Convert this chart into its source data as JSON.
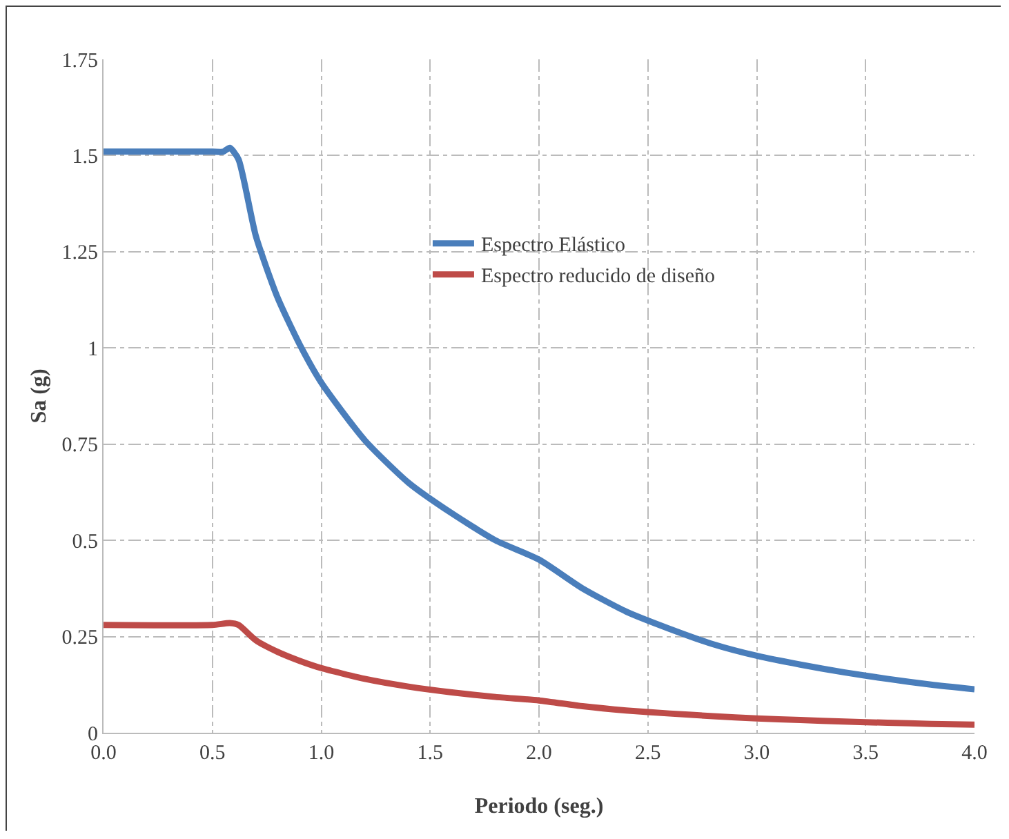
{
  "chart_data": {
    "type": "line",
    "xlabel": "Periodo (seg.)",
    "ylabel": "Sa (g)",
    "xlim": [
      0,
      4
    ],
    "xticks": [
      {
        "value": 0,
        "label": "0.0"
      },
      {
        "value": 0.5,
        "label": "0.5"
      },
      {
        "value": 1,
        "label": "1.0"
      },
      {
        "value": 1.5,
        "label": "1.5"
      },
      {
        "value": 2,
        "label": "2.0"
      },
      {
        "value": 2.5,
        "label": "2.5"
      },
      {
        "value": 3,
        "label": "3.0"
      },
      {
        "value": 3.5,
        "label": "3.5"
      },
      {
        "value": 4,
        "label": "4.0"
      }
    ],
    "ylim": [
      0,
      1.75
    ],
    "yticks": [
      0,
      0.25,
      0.5,
      0.75,
      1,
      1.25,
      1.5,
      1.75
    ],
    "grid": true,
    "legend": "center",
    "marker": "none",
    "line_style": "solid",
    "series": [
      {
        "name": "Espectro Elástico",
        "color": "#4a7ebb",
        "x": [
          0,
          0.5,
          0.55,
          0.58,
          0.62,
          0.7,
          0.8,
          0.9,
          1.0,
          1.2,
          1.4,
          1.6,
          1.8,
          2.0,
          2.2,
          2.4,
          2.6,
          2.8,
          3.0,
          3.2,
          3.4,
          3.6,
          3.8,
          4.0
        ],
        "values": [
          1.51,
          1.51,
          1.51,
          1.52,
          1.49,
          1.29,
          1.13,
          1.01,
          0.91,
          0.76,
          0.65,
          0.57,
          0.5,
          0.45,
          0.375,
          0.315,
          0.27,
          0.23,
          0.2,
          0.177,
          0.157,
          0.14,
          0.125,
          0.113
        ]
      },
      {
        "name": "Espectro reducido de diseño",
        "color": "#be4b48",
        "x": [
          0,
          0.5,
          0.58,
          0.62,
          0.7,
          0.8,
          0.9,
          1.0,
          1.2,
          1.4,
          1.6,
          1.8,
          2.0,
          2.2,
          2.4,
          2.6,
          2.8,
          3.0,
          3.2,
          3.4,
          3.6,
          3.8,
          4.0
        ],
        "values": [
          0.28,
          0.28,
          0.285,
          0.28,
          0.24,
          0.21,
          0.187,
          0.168,
          0.14,
          0.12,
          0.105,
          0.093,
          0.084,
          0.069,
          0.058,
          0.05,
          0.043,
          0.037,
          0.033,
          0.029,
          0.026,
          0.023,
          0.021
        ]
      }
    ]
  }
}
